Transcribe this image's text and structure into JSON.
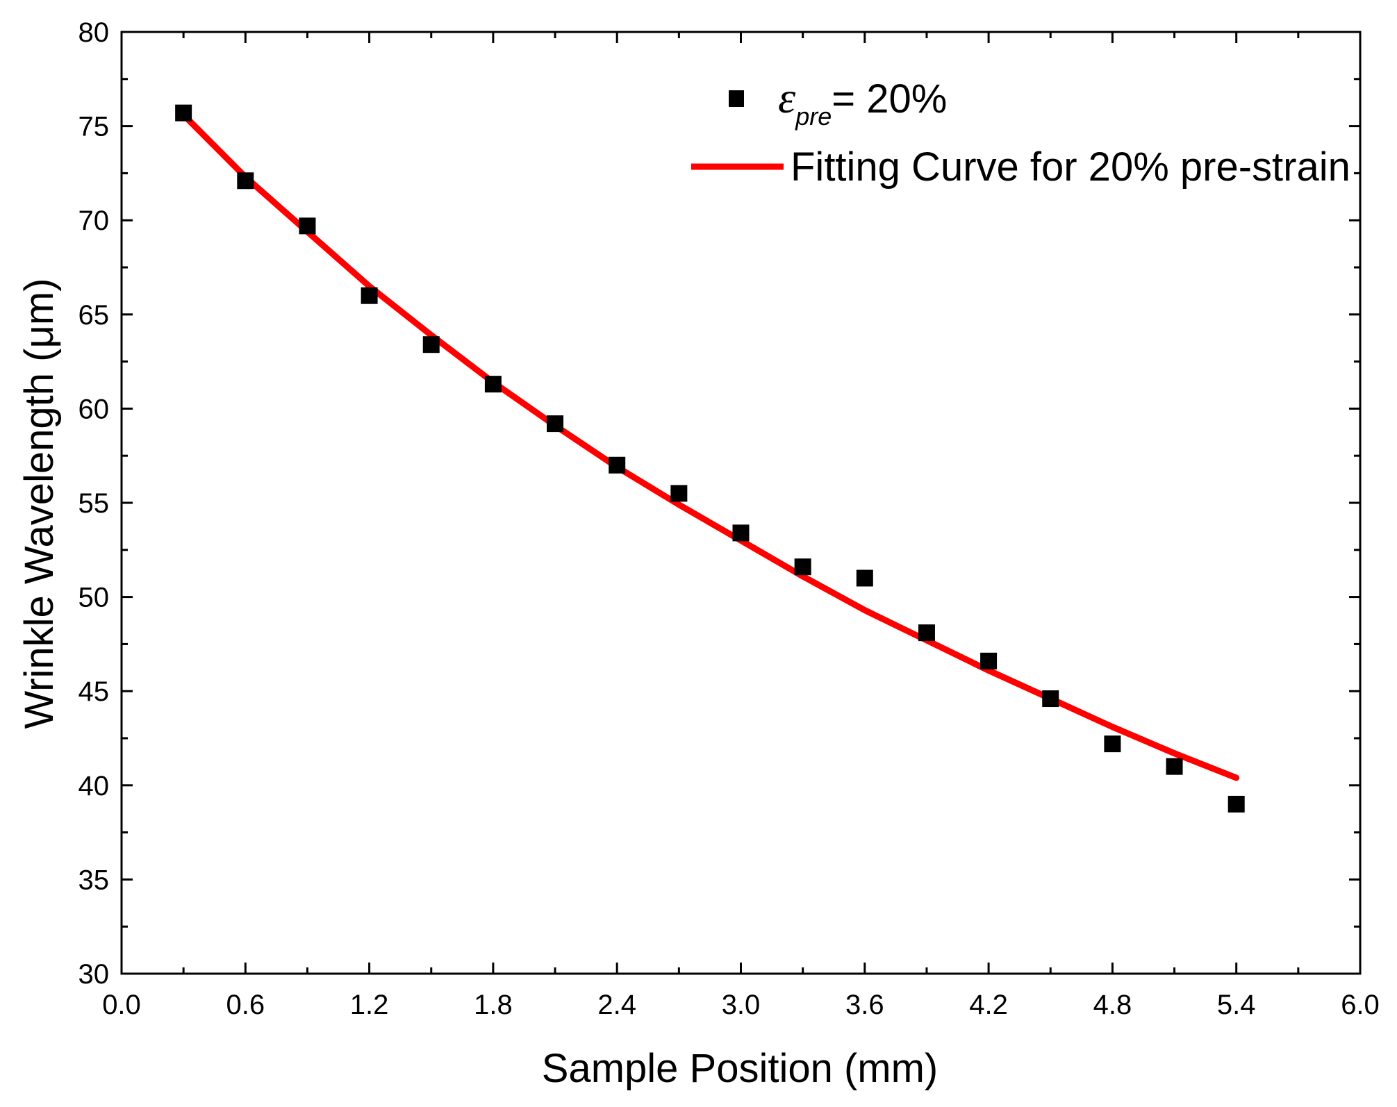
{
  "chart_data": {
    "type": "scatter",
    "title": "",
    "xlabel": "Sample Position (mm)",
    "ylabel": "Wrinkle Wavelength (μm)",
    "xlim": [
      0.0,
      6.0
    ],
    "ylim": [
      30,
      80
    ],
    "xticks": [
      "0.0",
      "0.6",
      "1.2",
      "1.8",
      "2.4",
      "3.0",
      "3.6",
      "4.2",
      "4.8",
      "5.4",
      "6.0"
    ],
    "yticks": [
      "30",
      "35",
      "40",
      "45",
      "50",
      "55",
      "60",
      "65",
      "70",
      "75",
      "80"
    ],
    "grid": false,
    "legend_position": "top-right",
    "series": [
      {
        "name": "ε_pre = 20%",
        "legend_symbol": "ε",
        "legend_subscript": "pre",
        "legend_suffix": "= 20%",
        "kind": "scatter",
        "marker": "square",
        "color": "#000000",
        "x": [
          0.3,
          0.6,
          0.9,
          1.2,
          1.5,
          1.8,
          2.1,
          2.4,
          2.7,
          3.0,
          3.3,
          3.6,
          3.9,
          4.2,
          4.5,
          4.8,
          5.1,
          5.4
        ],
        "y": [
          75.7,
          72.1,
          69.7,
          66.0,
          63.4,
          61.3,
          59.2,
          57.0,
          55.5,
          53.4,
          51.6,
          51.0,
          48.1,
          46.6,
          44.6,
          42.2,
          41.0,
          39.0
        ]
      },
      {
        "name": "Fitting Curve for 20% pre-strain",
        "kind": "line",
        "color": "#ff0000",
        "x": [
          0.3,
          0.6,
          0.9,
          1.2,
          1.5,
          1.8,
          2.1,
          2.4,
          2.7,
          3.0,
          3.3,
          3.6,
          3.9,
          4.2,
          4.5,
          4.8,
          5.1,
          5.4
        ],
        "y": [
          75.6,
          72.3,
          69.4,
          66.5,
          63.9,
          61.4,
          59.1,
          56.9,
          54.9,
          53.0,
          51.1,
          49.3,
          47.7,
          46.1,
          44.6,
          43.1,
          41.7,
          40.4
        ]
      }
    ]
  }
}
